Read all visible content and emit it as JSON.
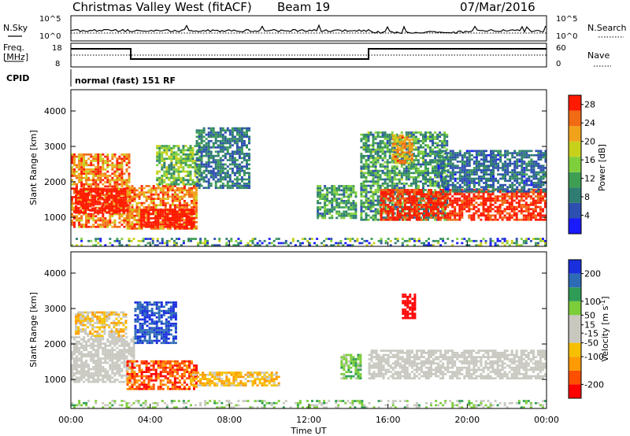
{
  "header": {
    "station": "Christmas Valley West (fitACF)",
    "beam": "Beam 19",
    "date": "07/Mar/2016"
  },
  "labels": {
    "nsky": "N.Sky",
    "nsearch": "N.Search",
    "freq": "Freq.",
    "mhz": "[MHz]",
    "nave": "Nave",
    "cpid": "CPID",
    "cpid_value": "normal (fast) 151 RF",
    "noise_top": "10^5",
    "noise_bottom": "10^0",
    "freq_top": "18",
    "freq_bottom": "8",
    "nave_top": "60",
    "nave_bottom": "0"
  },
  "colors": {
    "power": [
      "#1a1aff",
      "#2d4fb0",
      "#2f7d72",
      "#3e9e54",
      "#7fcf3c",
      "#c7d11c",
      "#f1a21a",
      "#f16a14",
      "#ff1a00"
    ],
    "velocity": [
      "#ff0000",
      "#ff5000",
      "#ff9a00",
      "#f6c000",
      "#c8c8c0",
      "#c8c8c0",
      "#7ccd3a",
      "#2e9c55",
      "#2d6bb6",
      "#1a2fdd"
    ]
  },
  "chart_data": [
    {
      "type": "heatmap",
      "panel": "power",
      "xlabel": "Time UT",
      "ylabel": "Slant Range [km]",
      "colorbar_label": "Power [dB]",
      "x_ticks": [
        "00:00",
        "04:00",
        "08:00",
        "12:00",
        "16:00",
        "20:00",
        "00:00"
      ],
      "x_range_hours": [
        0,
        24
      ],
      "y_ticks": [
        1000,
        2000,
        3000,
        4000
      ],
      "y_range_km": [
        180,
        4600
      ],
      "colorbar_ticks": [
        4,
        8,
        12,
        16,
        20,
        24,
        28
      ],
      "colorbar_range": [
        0,
        30
      ],
      "regions": [
        {
          "t0": 0.0,
          "t1": 3.0,
          "r0": 700,
          "r1": 2800,
          "level": 24,
          "spread": 6
        },
        {
          "t0": 0.2,
          "t1": 2.8,
          "r0": 1100,
          "r1": 1800,
          "level": 29,
          "spread": 2
        },
        {
          "t0": 2.8,
          "t1": 6.4,
          "r0": 650,
          "r1": 1900,
          "level": 24,
          "spread": 5
        },
        {
          "t0": 3.5,
          "t1": 6.2,
          "r0": 700,
          "r1": 1200,
          "level": 29,
          "spread": 2
        },
        {
          "t0": 4.3,
          "t1": 6.5,
          "r0": 1900,
          "r1": 3000,
          "level": 14,
          "spread": 6
        },
        {
          "t0": 6.3,
          "t1": 9.0,
          "r0": 1800,
          "r1": 3500,
          "level": 8,
          "spread": 4
        },
        {
          "t0": 12.4,
          "t1": 14.4,
          "r0": 950,
          "r1": 1900,
          "level": 11,
          "spread": 5
        },
        {
          "t0": 14.6,
          "t1": 19.0,
          "r0": 900,
          "r1": 3400,
          "level": 11,
          "spread": 6
        },
        {
          "t0": 16.2,
          "t1": 17.2,
          "r0": 2500,
          "r1": 3300,
          "level": 22,
          "spread": 5
        },
        {
          "t0": 15.6,
          "t1": 24.0,
          "r0": 900,
          "r1": 1800,
          "level": 28,
          "spread": 3
        },
        {
          "t0": 18.5,
          "t1": 24.0,
          "r0": 1700,
          "r1": 2900,
          "level": 7,
          "spread": 4
        },
        {
          "t0": 0.0,
          "t1": 24.0,
          "r0": 180,
          "r1": 420,
          "level": 10,
          "spread": 10
        }
      ]
    },
    {
      "type": "heatmap",
      "panel": "velocity",
      "xlabel": "Time UT",
      "ylabel": "Slant Range [km]",
      "colorbar_label": "Velocity [m s^-1]",
      "x_ticks": [
        "00:00",
        "04:00",
        "08:00",
        "12:00",
        "16:00",
        "20:00",
        "00:00"
      ],
      "x_range_hours": [
        0,
        24
      ],
      "y_ticks": [
        1000,
        2000,
        3000,
        4000
      ],
      "y_range_km": [
        180,
        4600
      ],
      "colorbar_ticks": [
        200,
        100,
        50,
        15,
        -15,
        -50,
        -100,
        -200
      ],
      "colorbar_range": [
        -250,
        250
      ],
      "regions": [
        {
          "t0": 0.0,
          "t1": 3.2,
          "r0": 900,
          "r1": 2200,
          "level": 0,
          "spread": 10
        },
        {
          "t0": 0.2,
          "t1": 2.8,
          "r0": 2200,
          "r1": 2900,
          "level": -60,
          "spread": 80
        },
        {
          "t0": 2.8,
          "t1": 6.3,
          "r0": 700,
          "r1": 1500,
          "level": -180,
          "spread": 60
        },
        {
          "t0": 3.2,
          "t1": 5.3,
          "r0": 2000,
          "r1": 3200,
          "level": 200,
          "spread": 40
        },
        {
          "t0": 6.0,
          "t1": 10.5,
          "r0": 800,
          "r1": 1200,
          "level": -90,
          "spread": 60
        },
        {
          "t0": 13.6,
          "t1": 14.6,
          "r0": 1000,
          "r1": 1700,
          "level": 80,
          "spread": 40
        },
        {
          "t0": 15.0,
          "t1": 24.0,
          "r0": 1000,
          "r1": 1800,
          "level": 0,
          "spread": 8
        },
        {
          "t0": 16.7,
          "t1": 17.4,
          "r0": 2700,
          "r1": 3400,
          "level": -220,
          "spread": 20
        },
        {
          "t0": 0.0,
          "t1": 24.0,
          "r0": 180,
          "r1": 420,
          "level": 60,
          "spread": 60
        }
      ]
    }
  ]
}
